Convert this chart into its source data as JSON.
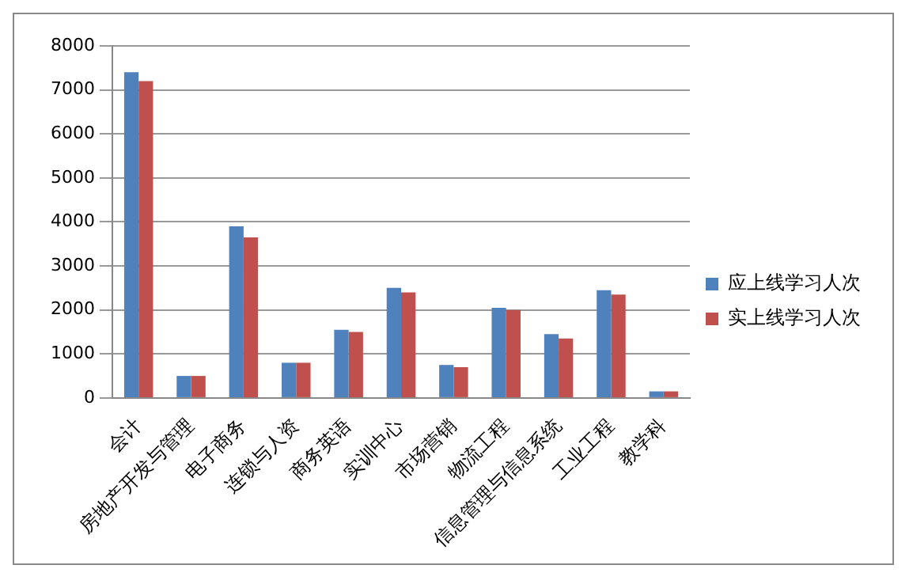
{
  "chart_data": {
    "type": "bar",
    "categories": [
      "会计",
      "房地产开发与管理",
      "电子商务",
      "连锁与人资",
      "商务英语",
      "实训中心",
      "市场营销",
      "物流工程",
      "信息管理与信息系统",
      "工业工程",
      "教学科"
    ],
    "series": [
      {
        "name": "应上线学习人次",
        "color": "#4f81bd",
        "values": [
          7400,
          500,
          3900,
          800,
          1550,
          2500,
          750,
          2050,
          1450,
          2450,
          150
        ]
      },
      {
        "name": "实上线学习人次",
        "color": "#c0504d",
        "values": [
          7200,
          500,
          3650,
          800,
          1500,
          2400,
          700,
          2000,
          1350,
          2350,
          150
        ]
      }
    ],
    "ylim": [
      0,
      8000
    ],
    "yticks": [
      0,
      1000,
      2000,
      3000,
      4000,
      5000,
      6000,
      7000,
      8000
    ],
    "grid": "y",
    "legend": "right"
  }
}
